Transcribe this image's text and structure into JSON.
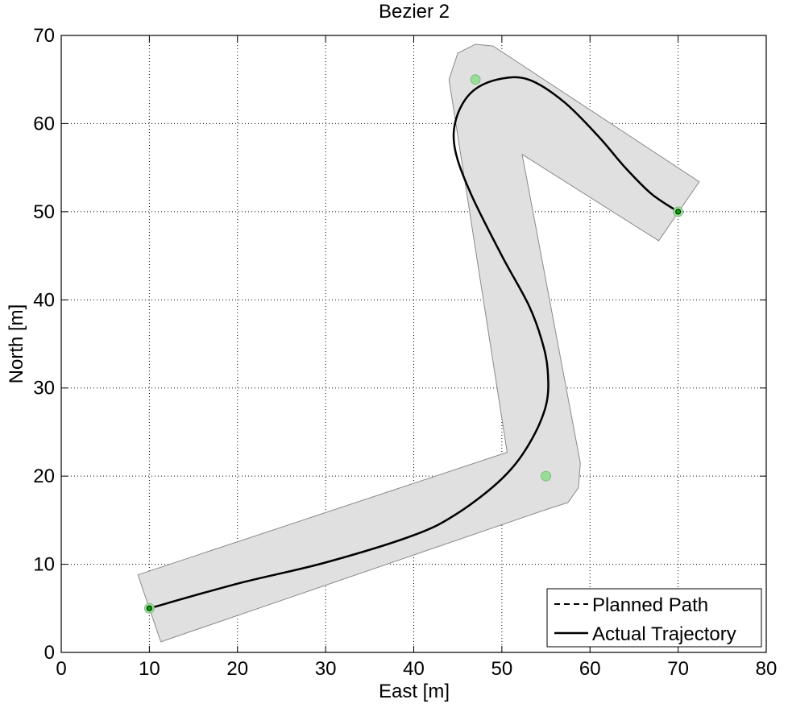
{
  "chart_data": {
    "type": "line",
    "title": "Bezier 2",
    "xlabel": "East [m]",
    "ylabel": "North [m]",
    "xlim": [
      0,
      80
    ],
    "ylim": [
      0,
      70
    ],
    "xticks": [
      0,
      10,
      20,
      30,
      40,
      50,
      60,
      70,
      80
    ],
    "yticks": [
      0,
      10,
      20,
      30,
      40,
      50,
      60,
      70
    ],
    "grid": true,
    "legend_position": "bottom-right",
    "corridor": {
      "fill": "#e0e0e0",
      "stroke": "#8a8a8a",
      "polygon": [
        [
          8.7,
          8.8
        ],
        [
          50.6,
          22.7
        ],
        [
          44.0,
          65.0
        ],
        [
          45.0,
          68.0
        ],
        [
          47.0,
          69.0
        ],
        [
          49.0,
          68.8
        ],
        [
          72.4,
          53.4
        ],
        [
          67.8,
          46.7
        ],
        [
          52.3,
          56.5
        ],
        [
          58.9,
          21.5
        ],
        [
          58.7,
          18.7
        ],
        [
          57.5,
          17.0
        ],
        [
          55.0,
          16.2
        ],
        [
          11.3,
          1.2
        ]
      ]
    },
    "control_points": {
      "color": "#99dd99",
      "points": [
        [
          10,
          5
        ],
        [
          55,
          20
        ],
        [
          47,
          65
        ],
        [
          70,
          50
        ]
      ]
    },
    "series": [
      {
        "name": "Planned Path",
        "style": "dashed",
        "color": "#000000",
        "points": [
          [
            10,
            5
          ],
          [
            20,
            7.8
          ],
          [
            30,
            10.2
          ],
          [
            40,
            13.3
          ],
          [
            45,
            15.8
          ],
          [
            50,
            19.7
          ],
          [
            53,
            23.5
          ],
          [
            55,
            28.0
          ],
          [
            55.2,
            32.0
          ],
          [
            54.5,
            35.5
          ],
          [
            53,
            39.5
          ],
          [
            50,
            45.0
          ],
          [
            46.5,
            52.0
          ],
          [
            44.7,
            57.0
          ],
          [
            44.8,
            60.5
          ],
          [
            46.5,
            63.5
          ],
          [
            49.5,
            65.0
          ],
          [
            53,
            65.0
          ],
          [
            57,
            62.5
          ],
          [
            61,
            58.5
          ],
          [
            64,
            55.0
          ],
          [
            67,
            52.0
          ],
          [
            70,
            50
          ]
        ]
      },
      {
        "name": "Actual Trajectory",
        "style": "solid",
        "color": "#000000",
        "points": [
          [
            10,
            5
          ],
          [
            20,
            7.8
          ],
          [
            30,
            10.2
          ],
          [
            40,
            13.3
          ],
          [
            45,
            15.8
          ],
          [
            50,
            19.7
          ],
          [
            53,
            23.5
          ],
          [
            55,
            28.0
          ],
          [
            55.2,
            32.0
          ],
          [
            54.5,
            35.5
          ],
          [
            53,
            39.5
          ],
          [
            50,
            45.0
          ],
          [
            46.5,
            52.0
          ],
          [
            44.7,
            57.0
          ],
          [
            44.8,
            60.5
          ],
          [
            46.5,
            63.5
          ],
          [
            49.5,
            65.0
          ],
          [
            53,
            65.0
          ],
          [
            57,
            62.5
          ],
          [
            61,
            58.5
          ],
          [
            64,
            55.0
          ],
          [
            67,
            52.0
          ],
          [
            70,
            50
          ]
        ]
      }
    ]
  }
}
